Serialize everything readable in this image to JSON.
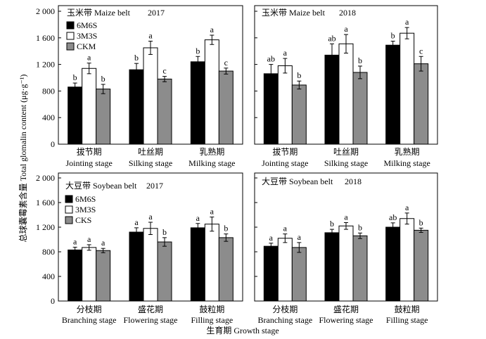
{
  "figure": {
    "ylabel": "总球囊霉素含量 Total glomalin content (μg·g⁻¹)",
    "xlabel": "生育期 Growth stage"
  },
  "chart_data": [
    {
      "type": "bar",
      "title": "玉米带 Maize belt",
      "subtitle": "2017",
      "categories_zh": [
        "拔节期",
        "吐丝期",
        "乳熟期"
      ],
      "categories_en": [
        "Jointing stage",
        "Silking stage",
        "Milking stage"
      ],
      "ylim": [
        0,
        2000
      ],
      "yticks": [
        0,
        400,
        800,
        1200,
        1600,
        2000
      ],
      "ytick_labels": [
        "0",
        "400",
        "800",
        "1 200",
        "1 600",
        "2 000"
      ],
      "legend": "top-left",
      "series": [
        {
          "name": "6M6S",
          "color": "#000000",
          "values": [
            860,
            1120,
            1240
          ],
          "errors": [
            60,
            95,
            80
          ],
          "letters": [
            "b",
            "b",
            "b"
          ]
        },
        {
          "name": "3M3S",
          "color": "#ffffff",
          "values": [
            1140,
            1450,
            1570
          ],
          "errors": [
            80,
            100,
            70
          ],
          "letters": [
            "a",
            "a",
            "a"
          ]
        },
        {
          "name": "CKM",
          "color": "#8c8c8c",
          "values": [
            830,
            980,
            1100
          ],
          "errors": [
            70,
            40,
            45
          ],
          "letters": [
            "b",
            "c",
            "c"
          ]
        }
      ]
    },
    {
      "type": "bar",
      "title": "玉米带 Maize belt",
      "subtitle": "2018",
      "categories_zh": [
        "拔节期",
        "吐丝期",
        "乳熟期"
      ],
      "categories_en": [
        "Jointing stage",
        "Silking stage",
        "Milking stage"
      ],
      "ylim": [
        0,
        2000
      ],
      "yticks": [
        0,
        400,
        800,
        1200,
        1600,
        2000
      ],
      "series": [
        {
          "color": "#000000",
          "values": [
            1060,
            1340,
            1490
          ],
          "errors": [
            140,
            170,
            60
          ],
          "letters": [
            "ab",
            "ab",
            "b"
          ]
        },
        {
          "color": "#ffffff",
          "values": [
            1180,
            1510,
            1670
          ],
          "errors": [
            110,
            140,
            85
          ],
          "letters": [
            "a",
            "a",
            "a"
          ]
        },
        {
          "color": "#8c8c8c",
          "values": [
            890,
            1080,
            1210
          ],
          "errors": [
            60,
            95,
            110
          ],
          "letters": [
            "b",
            "b",
            "c"
          ]
        }
      ]
    },
    {
      "type": "bar",
      "title": "大豆带 Soybean belt",
      "subtitle": "2017",
      "categories_zh": [
        "分枝期",
        "盛花期",
        "鼓粒期"
      ],
      "categories_en": [
        "Branching stage",
        "Flowering stage",
        "Filling stage"
      ],
      "ylim": [
        0,
        2000
      ],
      "yticks": [
        0,
        400,
        800,
        1200,
        1600,
        2000
      ],
      "ytick_labels": [
        "0",
        "400",
        "800",
        "1 200",
        "1 600",
        "2 000"
      ],
      "legend": "top-left",
      "series": [
        {
          "name": "6M6S",
          "color": "#000000",
          "values": [
            830,
            1120,
            1190
          ],
          "errors": [
            45,
            70,
            70
          ],
          "letters": [
            "a",
            "a",
            "a"
          ]
        },
        {
          "name": "3M3S",
          "color": "#ffffff",
          "values": [
            870,
            1180,
            1250
          ],
          "errors": [
            45,
            100,
            115
          ],
          "letters": [
            "a",
            "a",
            "a"
          ]
        },
        {
          "name": "CKS",
          "color": "#8c8c8c",
          "values": [
            820,
            960,
            1030
          ],
          "errors": [
            35,
            70,
            60
          ],
          "letters": [
            "a",
            "b",
            "b"
          ]
        }
      ]
    },
    {
      "type": "bar",
      "title": "大豆带 Soybean belt",
      "subtitle": "2018",
      "categories_zh": [
        "分枝期",
        "盛花期",
        "鼓粒期"
      ],
      "categories_en": [
        "Branching stage",
        "Flowering stage",
        "Filling stage"
      ],
      "ylim": [
        0,
        2000
      ],
      "yticks": [
        0,
        400,
        800,
        1200,
        1600,
        2000
      ],
      "series": [
        {
          "color": "#000000",
          "values": [
            890,
            1110,
            1200
          ],
          "errors": [
            50,
            55,
            70
          ],
          "letters": [
            "a",
            "b",
            "ab"
          ]
        },
        {
          "color": "#ffffff",
          "values": [
            1020,
            1220,
            1340
          ],
          "errors": [
            70,
            55,
            90
          ],
          "letters": [
            "a",
            "a",
            "a"
          ]
        },
        {
          "color": "#8c8c8c",
          "values": [
            870,
            1060,
            1150
          ],
          "errors": [
            80,
            45,
            35
          ],
          "letters": [
            "a",
            "b",
            "b"
          ]
        }
      ]
    }
  ]
}
